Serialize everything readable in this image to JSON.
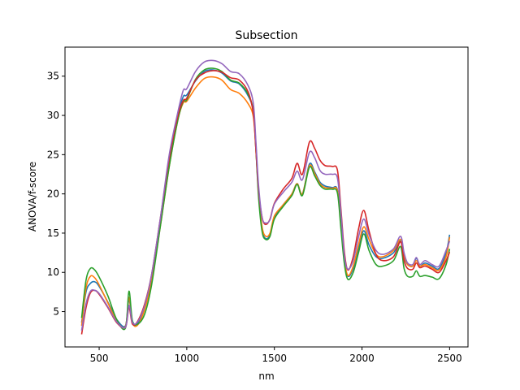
{
  "chart_data": {
    "type": "line",
    "title": "Subsection",
    "xlabel": "nm",
    "ylabel": "ANOVA/f-score",
    "xlim": [
      305,
      2605
    ],
    "ylim": [
      0.5,
      38.7
    ],
    "xticks": [
      500,
      1000,
      1500,
      2000,
      2500
    ],
    "yticks": [
      5,
      10,
      15,
      20,
      25,
      30,
      35
    ],
    "grid": false,
    "legend": "none",
    "series": [
      {
        "color": "#1f77b4",
        "points": [
          [
            400,
            3.6
          ],
          [
            425,
            7.5
          ],
          [
            450,
            8.6
          ],
          [
            475,
            8.8
          ],
          [
            500,
            8.2
          ],
          [
            550,
            6.2
          ],
          [
            600,
            4.0
          ],
          [
            650,
            3.2
          ],
          [
            670,
            6.5
          ],
          [
            690,
            3.8
          ],
          [
            720,
            3.5
          ],
          [
            760,
            5.6
          ],
          [
            800,
            9.5
          ],
          [
            850,
            16.5
          ],
          [
            900,
            24.0
          ],
          [
            950,
            30.0
          ],
          [
            980,
            32.4
          ],
          [
            1000,
            32.6
          ],
          [
            1050,
            34.4
          ],
          [
            1100,
            35.6
          ],
          [
            1150,
            35.8
          ],
          [
            1200,
            35.4
          ],
          [
            1250,
            34.4
          ],
          [
            1300,
            34.0
          ],
          [
            1350,
            32.5
          ],
          [
            1380,
            30.5
          ],
          [
            1395,
            26.0
          ],
          [
            1410,
            20.0
          ],
          [
            1430,
            15.5
          ],
          [
            1450,
            14.3
          ],
          [
            1475,
            14.8
          ],
          [
            1500,
            17.0
          ],
          [
            1550,
            18.6
          ],
          [
            1600,
            20.0
          ],
          [
            1630,
            21.3
          ],
          [
            1660,
            20.0
          ],
          [
            1700,
            23.8
          ],
          [
            1730,
            22.8
          ],
          [
            1760,
            21.5
          ],
          [
            1790,
            21.0
          ],
          [
            1830,
            20.8
          ],
          [
            1860,
            20.5
          ],
          [
            1880,
            16.0
          ],
          [
            1900,
            11.5
          ],
          [
            1920,
            9.5
          ],
          [
            1950,
            10.5
          ],
          [
            1980,
            13.0
          ],
          [
            2010,
            15.3
          ],
          [
            2040,
            13.5
          ],
          [
            2080,
            12.0
          ],
          [
            2120,
            11.8
          ],
          [
            2180,
            12.5
          ],
          [
            2220,
            14.0
          ],
          [
            2240,
            12.0
          ],
          [
            2260,
            11.0
          ],
          [
            2290,
            10.8
          ],
          [
            2310,
            11.8
          ],
          [
            2330,
            10.8
          ],
          [
            2360,
            11.2
          ],
          [
            2400,
            10.8
          ],
          [
            2440,
            10.5
          ],
          [
            2480,
            12.5
          ],
          [
            2500,
            14.8
          ]
        ]
      },
      {
        "color": "#ff7f0e",
        "points": [
          [
            400,
            3.2
          ],
          [
            425,
            8.0
          ],
          [
            450,
            9.5
          ],
          [
            475,
            9.3
          ],
          [
            500,
            8.4
          ],
          [
            550,
            6.1
          ],
          [
            600,
            3.8
          ],
          [
            650,
            3.1
          ],
          [
            670,
            6.8
          ],
          [
            690,
            3.6
          ],
          [
            720,
            3.3
          ],
          [
            760,
            5.3
          ],
          [
            800,
            9.0
          ],
          [
            850,
            16.0
          ],
          [
            900,
            23.5
          ],
          [
            950,
            29.5
          ],
          [
            980,
            31.6
          ],
          [
            1000,
            31.8
          ],
          [
            1050,
            33.5
          ],
          [
            1100,
            34.7
          ],
          [
            1150,
            34.9
          ],
          [
            1200,
            34.5
          ],
          [
            1250,
            33.3
          ],
          [
            1300,
            32.8
          ],
          [
            1350,
            31.5
          ],
          [
            1380,
            29.8
          ],
          [
            1395,
            25.5
          ],
          [
            1410,
            20.0
          ],
          [
            1430,
            15.8
          ],
          [
            1450,
            14.6
          ],
          [
            1475,
            15.0
          ],
          [
            1500,
            17.2
          ],
          [
            1550,
            18.6
          ],
          [
            1600,
            20.0
          ],
          [
            1630,
            21.3
          ],
          [
            1660,
            20.0
          ],
          [
            1700,
            23.6
          ],
          [
            1730,
            22.6
          ],
          [
            1760,
            21.3
          ],
          [
            1790,
            20.8
          ],
          [
            1830,
            20.7
          ],
          [
            1860,
            20.4
          ],
          [
            1880,
            16.0
          ],
          [
            1900,
            11.5
          ],
          [
            1920,
            9.6
          ],
          [
            1950,
            10.8
          ],
          [
            1980,
            13.5
          ],
          [
            2010,
            15.8
          ],
          [
            2040,
            14.2
          ],
          [
            2080,
            12.3
          ],
          [
            2120,
            12.0
          ],
          [
            2180,
            12.8
          ],
          [
            2220,
            14.2
          ],
          [
            2240,
            12.2
          ],
          [
            2260,
            11.0
          ],
          [
            2290,
            10.8
          ],
          [
            2310,
            11.5
          ],
          [
            2330,
            10.8
          ],
          [
            2360,
            11.0
          ],
          [
            2400,
            10.6
          ],
          [
            2440,
            10.3
          ],
          [
            2480,
            12.0
          ],
          [
            2500,
            14.5
          ]
        ]
      },
      {
        "color": "#2ca02c",
        "points": [
          [
            400,
            4.2
          ],
          [
            425,
            9.0
          ],
          [
            450,
            10.5
          ],
          [
            475,
            10.3
          ],
          [
            500,
            9.4
          ],
          [
            550,
            7.0
          ],
          [
            600,
            4.0
          ],
          [
            650,
            2.9
          ],
          [
            670,
            7.6
          ],
          [
            690,
            3.8
          ],
          [
            720,
            3.4
          ],
          [
            760,
            4.7
          ],
          [
            800,
            8.5
          ],
          [
            850,
            16.0
          ],
          [
            900,
            23.5
          ],
          [
            950,
            29.5
          ],
          [
            980,
            31.8
          ],
          [
            1000,
            32.0
          ],
          [
            1050,
            34.6
          ],
          [
            1100,
            35.8
          ],
          [
            1150,
            36.0
          ],
          [
            1200,
            35.6
          ],
          [
            1250,
            34.5
          ],
          [
            1300,
            34.1
          ],
          [
            1350,
            32.7
          ],
          [
            1380,
            30.5
          ],
          [
            1395,
            25.5
          ],
          [
            1410,
            19.5
          ],
          [
            1430,
            15.2
          ],
          [
            1450,
            14.2
          ],
          [
            1475,
            14.6
          ],
          [
            1500,
            16.8
          ],
          [
            1550,
            18.4
          ],
          [
            1600,
            19.8
          ],
          [
            1630,
            21.2
          ],
          [
            1660,
            19.8
          ],
          [
            1700,
            23.4
          ],
          [
            1730,
            22.3
          ],
          [
            1760,
            21.1
          ],
          [
            1790,
            20.6
          ],
          [
            1830,
            20.6
          ],
          [
            1860,
            20.1
          ],
          [
            1880,
            15.5
          ],
          [
            1900,
            11.0
          ],
          [
            1920,
            9.1
          ],
          [
            1950,
            10.0
          ],
          [
            1980,
            12.5
          ],
          [
            2010,
            14.9
          ],
          [
            2040,
            12.8
          ],
          [
            2080,
            11.0
          ],
          [
            2120,
            10.8
          ],
          [
            2180,
            11.5
          ],
          [
            2220,
            13.3
          ],
          [
            2240,
            10.5
          ],
          [
            2260,
            9.5
          ],
          [
            2290,
            9.5
          ],
          [
            2310,
            10.2
          ],
          [
            2330,
            9.5
          ],
          [
            2360,
            9.6
          ],
          [
            2400,
            9.4
          ],
          [
            2440,
            9.2
          ],
          [
            2480,
            11.0
          ],
          [
            2500,
            13.0
          ]
        ]
      },
      {
        "color": "#d62728",
        "points": [
          [
            400,
            2.1
          ],
          [
            425,
            5.5
          ],
          [
            450,
            7.4
          ],
          [
            475,
            7.7
          ],
          [
            500,
            7.2
          ],
          [
            550,
            5.5
          ],
          [
            600,
            3.6
          ],
          [
            650,
            3.0
          ],
          [
            670,
            5.5
          ],
          [
            690,
            3.4
          ],
          [
            720,
            3.8
          ],
          [
            760,
            6.0
          ],
          [
            800,
            9.8
          ],
          [
            850,
            17.0
          ],
          [
            900,
            24.5
          ],
          [
            950,
            30.0
          ],
          [
            980,
            31.9
          ],
          [
            1000,
            32.2
          ],
          [
            1050,
            34.5
          ],
          [
            1100,
            35.4
          ],
          [
            1150,
            35.7
          ],
          [
            1200,
            35.5
          ],
          [
            1250,
            34.8
          ],
          [
            1300,
            34.5
          ],
          [
            1350,
            33.0
          ],
          [
            1380,
            30.2
          ],
          [
            1395,
            25.5
          ],
          [
            1410,
            20.5
          ],
          [
            1430,
            17.0
          ],
          [
            1450,
            16.1
          ],
          [
            1475,
            16.8
          ],
          [
            1500,
            18.8
          ],
          [
            1550,
            20.6
          ],
          [
            1600,
            22.0
          ],
          [
            1630,
            23.9
          ],
          [
            1660,
            22.5
          ],
          [
            1700,
            26.6
          ],
          [
            1730,
            25.8
          ],
          [
            1760,
            24.3
          ],
          [
            1790,
            23.6
          ],
          [
            1830,
            23.5
          ],
          [
            1860,
            23.0
          ],
          [
            1880,
            18.0
          ],
          [
            1900,
            12.5
          ],
          [
            1920,
            10.3
          ],
          [
            1950,
            12.0
          ],
          [
            1980,
            15.5
          ],
          [
            2010,
            17.9
          ],
          [
            2040,
            15.3
          ],
          [
            2080,
            12.3
          ],
          [
            2120,
            11.5
          ],
          [
            2180,
            12.0
          ],
          [
            2220,
            13.9
          ],
          [
            2240,
            11.5
          ],
          [
            2260,
            10.5
          ],
          [
            2290,
            10.4
          ],
          [
            2310,
            11.2
          ],
          [
            2330,
            10.6
          ],
          [
            2360,
            10.8
          ],
          [
            2400,
            10.4
          ],
          [
            2440,
            10.0
          ],
          [
            2480,
            11.5
          ],
          [
            2500,
            12.6
          ]
        ]
      },
      {
        "color": "#9467bd",
        "points": [
          [
            400,
            2.6
          ],
          [
            425,
            6.0
          ],
          [
            450,
            7.6
          ],
          [
            475,
            7.7
          ],
          [
            500,
            7.3
          ],
          [
            550,
            5.6
          ],
          [
            600,
            3.7
          ],
          [
            650,
            3.0
          ],
          [
            670,
            5.8
          ],
          [
            690,
            3.6
          ],
          [
            720,
            3.7
          ],
          [
            760,
            5.8
          ],
          [
            800,
            9.8
          ],
          [
            850,
            17.0
          ],
          [
            900,
            25.0
          ],
          [
            950,
            30.5
          ],
          [
            980,
            33.2
          ],
          [
            1000,
            33.4
          ],
          [
            1050,
            35.6
          ],
          [
            1100,
            36.8
          ],
          [
            1150,
            37.0
          ],
          [
            1200,
            36.6
          ],
          [
            1250,
            35.6
          ],
          [
            1300,
            35.3
          ],
          [
            1350,
            33.8
          ],
          [
            1380,
            31.5
          ],
          [
            1395,
            26.5
          ],
          [
            1410,
            21.0
          ],
          [
            1430,
            17.0
          ],
          [
            1450,
            16.3
          ],
          [
            1475,
            16.7
          ],
          [
            1500,
            18.7
          ],
          [
            1550,
            20.2
          ],
          [
            1600,
            21.5
          ],
          [
            1630,
            22.9
          ],
          [
            1660,
            21.8
          ],
          [
            1700,
            25.3
          ],
          [
            1730,
            24.6
          ],
          [
            1760,
            23.0
          ],
          [
            1790,
            22.5
          ],
          [
            1830,
            22.5
          ],
          [
            1860,
            22.0
          ],
          [
            1880,
            17.5
          ],
          [
            1900,
            12.0
          ],
          [
            1920,
            10.4
          ],
          [
            1950,
            11.5
          ],
          [
            1980,
            14.5
          ],
          [
            2010,
            16.8
          ],
          [
            2040,
            14.8
          ],
          [
            2080,
            12.8
          ],
          [
            2120,
            12.3
          ],
          [
            2180,
            13.0
          ],
          [
            2220,
            14.6
          ],
          [
            2240,
            12.5
          ],
          [
            2260,
            11.2
          ],
          [
            2290,
            11.0
          ],
          [
            2310,
            11.9
          ],
          [
            2330,
            11.0
          ],
          [
            2360,
            11.5
          ],
          [
            2400,
            11.0
          ],
          [
            2440,
            10.8
          ],
          [
            2480,
            12.8
          ],
          [
            2500,
            14.0
          ]
        ]
      }
    ]
  }
}
